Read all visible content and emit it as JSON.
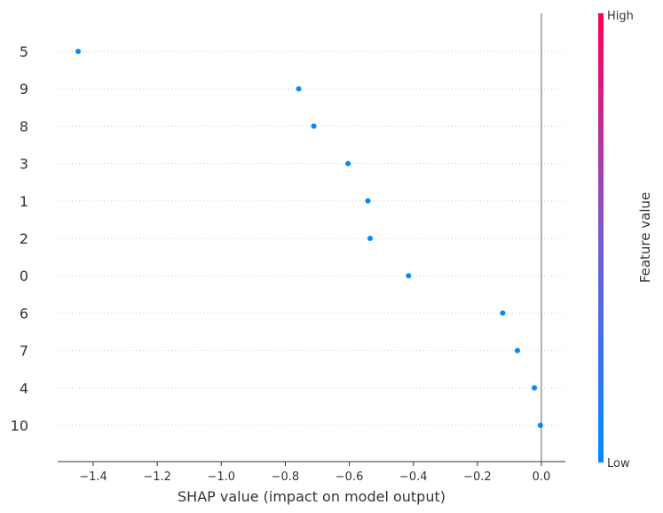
{
  "chart_data": {
    "type": "scatter",
    "xlabel": "SHAP value (impact on model output)",
    "xlim": [
      -1.52,
      0.08
    ],
    "xticks": [
      -1.4,
      -1.2,
      -1.0,
      -0.8,
      -0.6,
      -0.4,
      -0.2,
      0.0
    ],
    "xtick_labels": [
      "−1.4",
      "−1.2",
      "−1.0",
      "−0.8",
      "−0.6",
      "−0.4",
      "−0.2",
      "0.0"
    ],
    "categories": [
      "5",
      "9",
      "8",
      "3",
      "1",
      "2",
      "0",
      "6",
      "7",
      "4",
      "10"
    ],
    "values": [
      -1.447,
      -0.758,
      -0.711,
      -0.604,
      -0.542,
      -0.535,
      -0.415,
      -0.121,
      -0.075,
      -0.022,
      -0.003
    ],
    "point_color": "#008bfb",
    "zero_line_color": "#999999",
    "colorbar": {
      "title": "Feature value",
      "high_label": "High",
      "low_label": "Low",
      "high_color": "#ff0052",
      "low_color": "#008bfb"
    },
    "grid": "dotted horizontal row lines"
  }
}
